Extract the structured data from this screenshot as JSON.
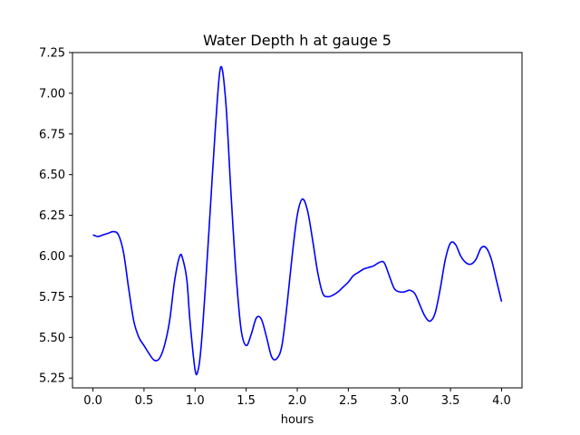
{
  "chart_data": {
    "type": "line",
    "title": "Water Depth h at gauge 5",
    "xlabel": "hours",
    "ylabel": "",
    "xlim": [
      -0.2,
      4.2
    ],
    "ylim": [
      5.19,
      7.25
    ],
    "x_ticks": [
      0.0,
      0.5,
      1.0,
      1.5,
      2.0,
      2.5,
      3.0,
      3.5,
      4.0
    ],
    "x_tick_labels": [
      "0.0",
      "0.5",
      "1.0",
      "1.5",
      "2.0",
      "2.5",
      "3.0",
      "3.5",
      "4.0"
    ],
    "y_ticks": [
      5.25,
      5.5,
      5.75,
      6.0,
      6.25,
      6.5,
      6.75,
      7.0,
      7.25
    ],
    "y_tick_labels": [
      "5.25",
      "5.50",
      "5.75",
      "6.00",
      "6.25",
      "6.50",
      "6.75",
      "7.00",
      "7.25"
    ],
    "grid": false,
    "legend": "none",
    "series": [
      {
        "color": "#0000ff",
        "x": [
          0.0,
          0.05,
          0.1,
          0.15,
          0.2,
          0.25,
          0.3,
          0.35,
          0.4,
          0.45,
          0.5,
          0.55,
          0.6,
          0.65,
          0.7,
          0.75,
          0.8,
          0.85,
          0.88,
          0.92,
          0.95,
          1.0,
          1.03,
          1.06,
          1.1,
          1.15,
          1.2,
          1.25,
          1.3,
          1.35,
          1.4,
          1.45,
          1.5,
          1.55,
          1.6,
          1.65,
          1.7,
          1.75,
          1.8,
          1.85,
          1.9,
          1.95,
          2.0,
          2.05,
          2.1,
          2.15,
          2.2,
          2.25,
          2.3,
          2.35,
          2.4,
          2.45,
          2.5,
          2.55,
          2.6,
          2.65,
          2.7,
          2.75,
          2.8,
          2.85,
          2.9,
          2.95,
          3.0,
          3.05,
          3.1,
          3.15,
          3.2,
          3.25,
          3.3,
          3.35,
          3.4,
          3.45,
          3.5,
          3.55,
          3.6,
          3.65,
          3.7,
          3.75,
          3.8,
          3.85,
          3.9,
          3.95,
          4.0
        ],
        "values": [
          6.13,
          6.12,
          6.13,
          6.14,
          6.15,
          6.13,
          6.02,
          5.8,
          5.6,
          5.5,
          5.45,
          5.4,
          5.36,
          5.37,
          5.45,
          5.6,
          5.85,
          6.0,
          5.98,
          5.85,
          5.6,
          5.3,
          5.3,
          5.45,
          5.8,
          6.3,
          6.8,
          7.16,
          6.95,
          6.4,
          5.9,
          5.55,
          5.45,
          5.52,
          5.62,
          5.61,
          5.5,
          5.38,
          5.37,
          5.45,
          5.7,
          6.0,
          6.25,
          6.35,
          6.28,
          6.1,
          5.9,
          5.77,
          5.75,
          5.76,
          5.78,
          5.81,
          5.84,
          5.88,
          5.9,
          5.92,
          5.93,
          5.94,
          5.96,
          5.96,
          5.88,
          5.8,
          5.78,
          5.78,
          5.79,
          5.77,
          5.7,
          5.63,
          5.6,
          5.65,
          5.8,
          5.98,
          6.08,
          6.07,
          6.0,
          5.96,
          5.95,
          5.98,
          6.05,
          6.05,
          5.98,
          5.85,
          5.72
        ]
      }
    ]
  }
}
